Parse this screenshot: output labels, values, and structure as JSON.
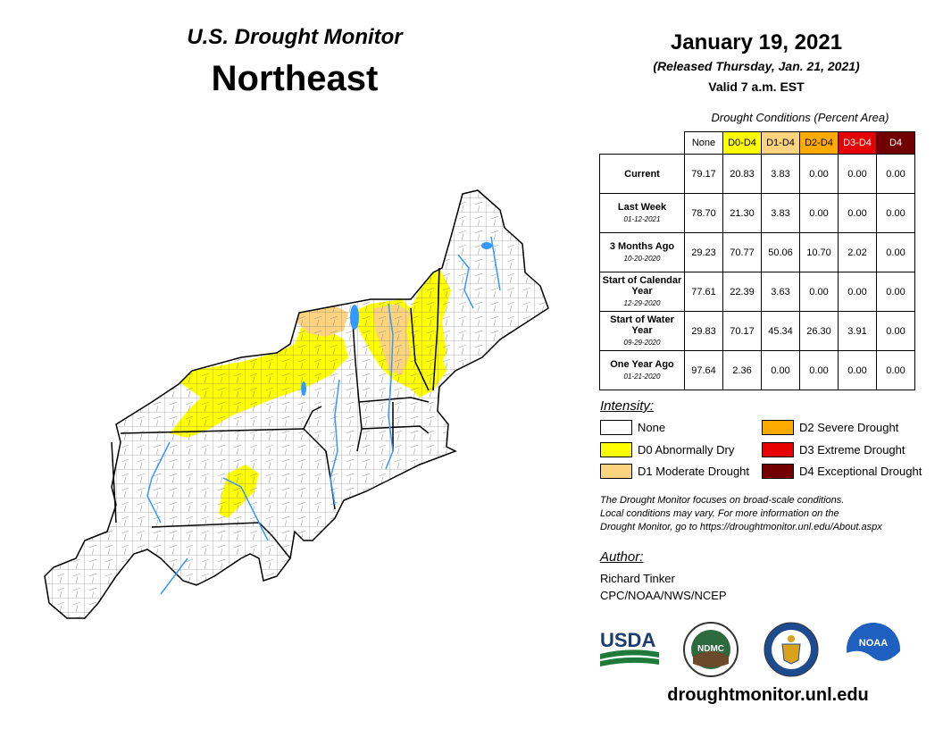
{
  "header": {
    "subtitle": "U.S. Drought Monitor",
    "region": "Northeast",
    "date": "January 19, 2021",
    "released": "(Released Thursday, Jan. 21, 2021)",
    "valid": "Valid 7 a.m. EST"
  },
  "table": {
    "caption": "Drought Conditions (Percent Area)",
    "columns": [
      {
        "label": "None",
        "color": "#ffffff",
        "text": "#000000"
      },
      {
        "label": "D0-D4",
        "color": "#ffff00",
        "text": "#000000"
      },
      {
        "label": "D1-D4",
        "color": "#fcd37f",
        "text": "#000000"
      },
      {
        "label": "D2-D4",
        "color": "#ffaa00",
        "text": "#000000"
      },
      {
        "label": "D3-D4",
        "color": "#e60000",
        "text": "#ffffff"
      },
      {
        "label": "D4",
        "color": "#730000",
        "text": "#ffffff"
      }
    ],
    "rows": [
      {
        "label": "Current",
        "date": "",
        "values": [
          "79.17",
          "20.83",
          "3.83",
          "0.00",
          "0.00",
          "0.00"
        ]
      },
      {
        "label": "Last Week",
        "date": "01-12-2021",
        "values": [
          "78.70",
          "21.30",
          "3.83",
          "0.00",
          "0.00",
          "0.00"
        ]
      },
      {
        "label": "3 Months Ago",
        "date": "10-20-2020",
        "values": [
          "29.23",
          "70.77",
          "50.06",
          "10.70",
          "2.02",
          "0.00"
        ]
      },
      {
        "label": "Start of Calendar Year",
        "date": "12-29-2020",
        "values": [
          "77.61",
          "22.39",
          "3.63",
          "0.00",
          "0.00",
          "0.00"
        ]
      },
      {
        "label": "Start of Water Year",
        "date": "09-29-2020",
        "values": [
          "29.83",
          "70.17",
          "45.34",
          "26.30",
          "3.91",
          "0.00"
        ]
      },
      {
        "label": "One Year Ago",
        "date": "01-21-2020",
        "values": [
          "97.64",
          "2.36",
          "0.00",
          "0.00",
          "0.00",
          "0.00"
        ]
      }
    ]
  },
  "legend": {
    "heading": "Intensity:",
    "items": [
      {
        "label": "None",
        "color": "#ffffff"
      },
      {
        "label": "D0 Abnormally Dry",
        "color": "#ffff00"
      },
      {
        "label": "D1 Moderate Drought",
        "color": "#fcd37f"
      },
      {
        "label": "D2 Severe Drought",
        "color": "#ffaa00"
      },
      {
        "label": "D3 Extreme Drought",
        "color": "#e60000"
      },
      {
        "label": "D4 Exceptional Drought",
        "color": "#730000"
      }
    ]
  },
  "note": {
    "line1": "The Drought Monitor focuses on broad-scale conditions.",
    "line2": "Local conditions may vary. For more information on the",
    "line3": "Drought Monitor, go to https://droughtmonitor.unl.edu/About.aspx"
  },
  "author": {
    "heading": "Author:",
    "name": "Richard Tinker",
    "org": "CPC/NOAA/NWS/NCEP"
  },
  "logos": {
    "usda": "USDA",
    "ndmc": "NDMC",
    "noaa": "NOAA"
  },
  "footer_url": "droughtmonitor.unl.edu",
  "colors": {
    "water": "#3399ff",
    "border": "#000000",
    "county": "#555555"
  }
}
